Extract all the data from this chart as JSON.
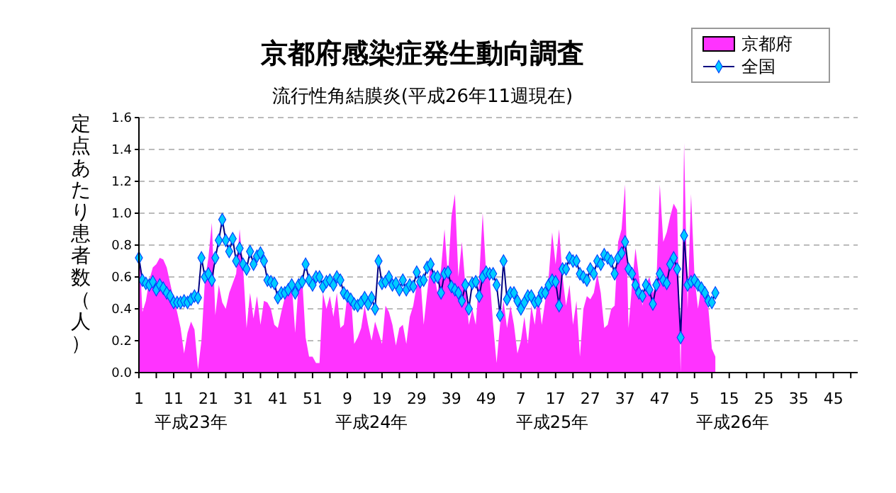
{
  "chart_data": {
    "type": "area",
    "title": "京都府感染症発生動向調査",
    "subtitle": "流行性角結膜炎(平成26年11週現在)",
    "ylabel": "定点あたり患者数（人）",
    "annotations": [
      "平成23年",
      "平成24年",
      "平成25年",
      "平成26年"
    ],
    "categories": [
      "1",
      null,
      null,
      null,
      null,
      null,
      null,
      null,
      null,
      null,
      "11",
      null,
      null,
      null,
      null,
      null,
      null,
      null,
      null,
      null,
      "21",
      null,
      null,
      null,
      null,
      null,
      null,
      null,
      null,
      null,
      "31",
      null,
      null,
      null,
      null,
      null,
      null,
      null,
      null,
      null,
      "41",
      null,
      null,
      null,
      null,
      null,
      null,
      null,
      null,
      null,
      "51",
      null,
      null,
      null,
      null,
      null,
      null,
      null,
      null,
      null,
      "9",
      null,
      null,
      null,
      null,
      null,
      null,
      null,
      null,
      null,
      "19",
      null,
      null,
      null,
      null,
      null,
      null,
      null,
      null,
      null,
      "29",
      null,
      null,
      null,
      null,
      null,
      null,
      null,
      null,
      null,
      "39",
      null,
      null,
      null,
      null,
      null,
      null,
      null,
      null,
      null,
      "49",
      null,
      null,
      null,
      null,
      null,
      null,
      null,
      null,
      null,
      "7",
      null,
      null,
      null,
      null,
      null,
      null,
      null,
      null,
      null,
      "17",
      null,
      null,
      null,
      null,
      null,
      null,
      null,
      null,
      null,
      "27",
      null,
      null,
      null,
      null,
      null,
      null,
      null,
      null,
      null,
      "37",
      null,
      null,
      null,
      null,
      null,
      null,
      null,
      null,
      null,
      "47",
      null,
      null,
      null,
      null,
      null,
      null,
      null,
      null,
      null,
      "5",
      null,
      null,
      null,
      null,
      null,
      null,
      null,
      null,
      null,
      "15",
      null,
      null,
      null,
      null,
      null,
      null,
      null,
      null,
      null,
      "25",
      null,
      null,
      null,
      null,
      null,
      null,
      null,
      null,
      null,
      "35",
      null,
      null,
      null,
      null,
      null,
      null,
      null,
      null,
      null,
      "45",
      null,
      null,
      null,
      null,
      null,
      null,
      null
    ],
    "series": [
      {
        "name": "京都府",
        "color": "#ff33ff",
        "values": [
          0.84,
          0.38,
          0.45,
          0.58,
          0.66,
          0.68,
          0.72,
          0.71,
          0.66,
          0.56,
          0.46,
          0.38,
          0.28,
          0.12,
          0.25,
          0.32,
          0.27,
          0.02,
          0.2,
          0.58,
          0.72,
          0.94,
          0.36,
          0.55,
          0.44,
          0.4,
          0.5,
          0.56,
          0.62,
          0.9,
          0.66,
          0.28,
          0.5,
          0.34,
          0.48,
          0.3,
          0.45,
          0.44,
          0.4,
          0.3,
          0.28,
          0.38,
          0.47,
          0.52,
          0.56,
          0.25,
          0.56,
          0.6,
          0.22,
          0.1,
          0.1,
          0.06,
          0.06,
          0.5,
          0.4,
          0.48,
          0.35,
          0.5,
          0.28,
          0.3,
          0.48,
          0.5,
          0.18,
          0.22,
          0.28,
          0.42,
          0.3,
          0.2,
          0.32,
          0.25,
          0.18,
          0.42,
          0.38,
          0.3,
          0.17,
          0.28,
          0.3,
          0.18,
          0.35,
          0.42,
          0.55,
          0.62,
          0.3,
          0.5,
          0.68,
          0.62,
          0.5,
          0.65,
          0.9,
          0.6,
          0.98,
          1.12,
          0.6,
          0.82,
          0.55,
          0.3,
          0.4,
          0.3,
          0.6,
          1.0,
          0.62,
          0.6,
          0.3,
          0.06,
          0.3,
          0.45,
          0.28,
          0.42,
          0.3,
          0.12,
          0.2,
          0.35,
          0.18,
          0.42,
          0.3,
          0.5,
          0.3,
          0.45,
          0.6,
          0.88,
          0.68,
          0.9,
          0.6,
          0.42,
          0.55,
          0.3,
          0.45,
          0.1,
          0.4,
          0.48,
          0.46,
          0.5,
          0.62,
          0.5,
          0.28,
          0.3,
          0.4,
          0.42,
          0.82,
          0.9,
          1.18,
          0.28,
          0.55,
          0.78,
          0.6,
          0.42,
          0.55,
          0.6,
          0.5,
          0.55,
          1.18,
          0.82,
          0.88,
          0.98,
          1.06,
          1.02,
          0.0,
          1.44,
          0.4,
          1.12,
          0.6,
          0.4,
          0.55,
          0.45,
          0.4,
          0.15,
          0.1,
          null,
          null,
          null,
          null,
          null,
          null,
          null,
          null,
          null,
          null,
          null,
          null,
          null,
          null,
          null,
          null,
          null,
          null,
          null,
          null,
          null,
          null,
          null,
          null,
          null,
          null,
          null,
          null,
          null,
          null,
          null,
          null,
          null,
          null,
          null,
          null,
          null,
          null,
          null,
          null,
          null
        ]
      },
      {
        "name": "全国",
        "type": "line",
        "color": "#00ccff",
        "marker": "diamond",
        "values": [
          0.72,
          0.58,
          0.56,
          0.55,
          0.57,
          0.52,
          0.55,
          0.53,
          0.5,
          0.48,
          0.44,
          0.44,
          0.44,
          0.45,
          0.44,
          0.46,
          0.48,
          0.47,
          0.72,
          0.6,
          0.62,
          0.58,
          0.72,
          0.83,
          0.96,
          0.83,
          0.76,
          0.84,
          0.7,
          0.78,
          0.68,
          0.65,
          0.76,
          0.68,
          0.73,
          0.75,
          0.7,
          0.58,
          0.57,
          0.56,
          0.47,
          0.5,
          0.5,
          0.52,
          0.55,
          0.5,
          0.55,
          0.57,
          0.68,
          0.58,
          0.55,
          0.6,
          0.6,
          0.54,
          0.57,
          0.58,
          0.55,
          0.6,
          0.58,
          0.5,
          0.48,
          0.46,
          0.43,
          0.42,
          0.44,
          0.47,
          0.43,
          0.47,
          0.4,
          0.7,
          0.56,
          0.57,
          0.6,
          0.55,
          0.56,
          0.52,
          0.58,
          0.52,
          0.55,
          0.54,
          0.63,
          0.57,
          0.58,
          0.66,
          0.68,
          0.6,
          0.6,
          0.5,
          0.62,
          0.63,
          0.54,
          0.52,
          0.5,
          0.45,
          0.55,
          0.4,
          0.56,
          0.57,
          0.48,
          0.6,
          0.63,
          0.62,
          0.62,
          0.55,
          0.36,
          0.7,
          0.46,
          0.5,
          0.5,
          0.45,
          0.4,
          0.44,
          0.48,
          0.48,
          0.44,
          0.45,
          0.5,
          0.5,
          0.55,
          0.58,
          0.57,
          0.42,
          0.65,
          0.65,
          0.72,
          0.7,
          0.7,
          0.62,
          0.6,
          0.58,
          0.65,
          0.62,
          0.7,
          0.68,
          0.74,
          0.72,
          0.7,
          0.62,
          0.72,
          0.75,
          0.82,
          0.65,
          0.62,
          0.55,
          0.5,
          0.48,
          0.55,
          0.52,
          0.43,
          0.55,
          0.62,
          0.58,
          0.56,
          0.68,
          0.72,
          0.65,
          0.22,
          0.86,
          0.55,
          0.57,
          0.58,
          0.55,
          0.53,
          0.5,
          0.45,
          0.44,
          0.5,
          null,
          null,
          null,
          null,
          null,
          null,
          null,
          null,
          null,
          null,
          null,
          null,
          null,
          null,
          null,
          null,
          null,
          null,
          null,
          null,
          null,
          null,
          null,
          null,
          null,
          null,
          null,
          null,
          null,
          null,
          null,
          null,
          null,
          null,
          null,
          null,
          null,
          null,
          null,
          null,
          null
        ]
      }
    ],
    "ylim": [
      0,
      1.6
    ],
    "yticks": [
      {
        "value": 0,
        "label": "0.0"
      },
      0.2,
      0.4,
      0.6,
      0.8,
      {
        "value": 1,
        "label": "1.0"
      },
      1.2,
      1.4,
      1.6
    ],
    "grid": "y",
    "legend": "top right"
  }
}
